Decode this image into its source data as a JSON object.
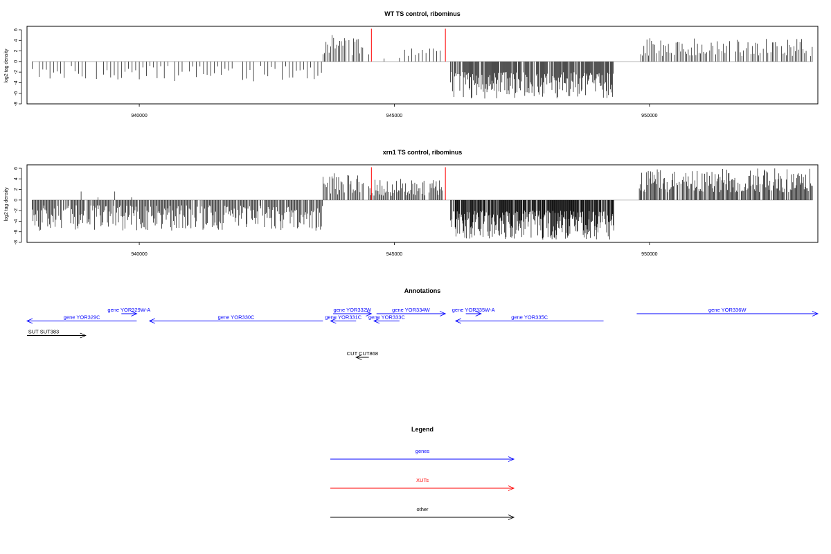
{
  "chart_data": [
    {
      "type": "bar",
      "title": "WT TS control, ribominus",
      "ylabel": "log2 tag density",
      "xlim": [
        937800,
        953300
      ],
      "ylim": [
        -8,
        6
      ],
      "xticks": [
        940000,
        945000,
        950000
      ],
      "xtick_labels": [
        "940000",
        "945000",
        "950000"
      ],
      "yticks": [
        6,
        4,
        2,
        0,
        -2,
        -4,
        -6,
        -8
      ],
      "ytick_labels": [
        "6",
        "4",
        "2",
        "0",
        "-2",
        "-4",
        "-6",
        "-8"
      ],
      "baseline_color": "#bebebe",
      "bar_color": "#000000",
      "highlight_color": "#ff0000",
      "segments": [
        {
          "start": 937900,
          "end": 943600,
          "sign": -1,
          "dmin": 0.8,
          "dmax": 3.8,
          "step": 70,
          "seed": 11
        },
        {
          "start": 943600,
          "end": 944400,
          "sign": 1,
          "dmin": 1.2,
          "dmax": 5.0,
          "step": 30,
          "seed": 12
        },
        {
          "start": 944500,
          "end": 945100,
          "sign": 1,
          "dmin": 0.5,
          "dmax": 1.5,
          "step": 300,
          "seed": 13
        },
        {
          "start": 945200,
          "end": 946000,
          "sign": 1,
          "dmin": 1.0,
          "dmax": 3.0,
          "step": 70,
          "seed": 14
        },
        {
          "start": 946100,
          "end": 949300,
          "sign": -1,
          "dmin": 2.0,
          "dmax": 7.0,
          "step": 14,
          "seed": 15
        },
        {
          "start": 949800,
          "end": 953200,
          "sign": 1,
          "dmin": 1.0,
          "dmax": 4.5,
          "step": 30,
          "seed": 16
        }
      ],
      "highlights": [
        {
          "x": 944550,
          "value": 6.2
        },
        {
          "x": 946000,
          "value": 6.2
        }
      ]
    },
    {
      "type": "bar",
      "title": "xrn1 TS control, ribominus",
      "ylabel": "log2 tag density",
      "xlim": [
        937800,
        953300
      ],
      "ylim": [
        -8,
        6
      ],
      "xticks": [
        940000,
        945000,
        950000
      ],
      "xtick_labels": [
        "940000",
        "945000",
        "950000"
      ],
      "yticks": [
        6,
        4,
        2,
        0,
        -2,
        -4,
        -6,
        -8
      ],
      "ytick_labels": [
        "6",
        "4",
        "2",
        "0",
        "-2",
        "-4",
        "-6",
        "-8"
      ],
      "baseline_color": "#bebebe",
      "bar_color": "#000000",
      "highlight_color": "#ff0000",
      "segments": [
        {
          "start": 937900,
          "end": 943600,
          "sign": -1,
          "dmin": 1.0,
          "dmax": 5.8,
          "step": 18,
          "seed": 21
        },
        {
          "start": 938200,
          "end": 940500,
          "sign": 1,
          "dmin": 0.5,
          "dmax": 2.5,
          "step": 330,
          "seed": 22
        },
        {
          "start": 943600,
          "end": 944400,
          "sign": 1,
          "dmin": 1.0,
          "dmax": 5.2,
          "step": 22,
          "seed": 23
        },
        {
          "start": 944500,
          "end": 946000,
          "sign": 1,
          "dmin": 0.8,
          "dmax": 4.0,
          "step": 20,
          "seed": 24
        },
        {
          "start": 946100,
          "end": 949300,
          "sign": -1,
          "dmin": 2.0,
          "dmax": 7.5,
          "step": 10,
          "seed": 25
        },
        {
          "start": 949800,
          "end": 953200,
          "sign": 1,
          "dmin": 1.5,
          "dmax": 6.0,
          "step": 16,
          "seed": 26
        }
      ],
      "highlights": [
        {
          "x": 944550,
          "value": 6.2
        },
        {
          "x": 946000,
          "value": 6.2
        }
      ]
    }
  ],
  "annotations": {
    "title": "Annotations",
    "features": [
      {
        "label": "gene YOR329C",
        "start": 937800,
        "end": 939950,
        "strand": "-",
        "row": 1,
        "color": "#0000ff"
      },
      {
        "label": "gene YOR329W-A",
        "start": 939650,
        "end": 939950,
        "strand": "+",
        "row": 0,
        "color": "#0000ff"
      },
      {
        "label": "gene YOR330C",
        "start": 940200,
        "end": 943600,
        "strand": "-",
        "row": 1,
        "color": "#0000ff"
      },
      {
        "label": "gene YOR331C",
        "start": 943750,
        "end": 944250,
        "strand": "-",
        "row": 1,
        "color": "#0000ff"
      },
      {
        "label": "gene YOR332W",
        "start": 943800,
        "end": 944550,
        "strand": "+",
        "row": 0,
        "color": "#0000ff"
      },
      {
        "label": "gene YOR333C",
        "start": 944600,
        "end": 945100,
        "strand": "-",
        "row": 1,
        "color": "#0000ff"
      },
      {
        "label": "gene YOR334W",
        "start": 944650,
        "end": 946000,
        "strand": "+",
        "row": 0,
        "color": "#0000ff"
      },
      {
        "label": "gene YOR335W-A",
        "start": 946400,
        "end": 946700,
        "strand": "+",
        "row": 0,
        "color": "#0000ff"
      },
      {
        "label": "gene YOR335C",
        "start": 946200,
        "end": 949100,
        "strand": "-",
        "row": 1,
        "color": "#0000ff"
      },
      {
        "label": "gene YOR336W",
        "start": 949750,
        "end": 953500,
        "strand": "+",
        "row": 0,
        "color": "#0000ff"
      },
      {
        "label": "SUT SUT383",
        "start": 937800,
        "end": 938950,
        "strand": "+",
        "row": 3,
        "color": "#000000"
      },
      {
        "label": "CUT CUT868",
        "start": 944250,
        "end": 944500,
        "strand": "-",
        "row": 6,
        "color": "#000000"
      }
    ]
  },
  "legend": {
    "title": "Legend",
    "items": [
      {
        "label": "genes",
        "color": "#0000ff"
      },
      {
        "label": "XUTs",
        "color": "#ff0000"
      },
      {
        "label": "other",
        "color": "#000000"
      }
    ]
  }
}
